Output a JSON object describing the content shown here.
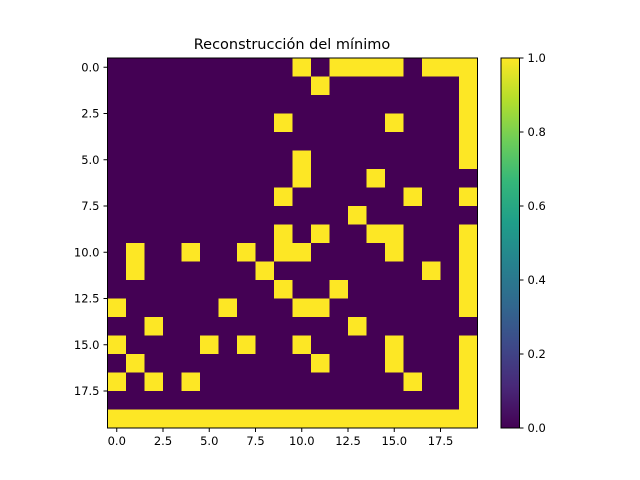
{
  "chart_data": {
    "type": "heatmap",
    "title": "Reconstrucción del mínimo",
    "rows": 20,
    "cols": 20,
    "colormap": "viridis",
    "colors": {
      "low": "#440154",
      "high": "#fde725"
    },
    "x_ticks": [
      "0.0",
      "2.5",
      "5.0",
      "7.5",
      "10.0",
      "12.5",
      "15.0",
      "17.5"
    ],
    "x_tick_values": [
      0,
      2.5,
      5,
      7.5,
      10,
      12.5,
      15,
      17.5
    ],
    "y_ticks": [
      "0.0",
      "2.5",
      "5.0",
      "7.5",
      "10.0",
      "12.5",
      "15.0",
      "17.5"
    ],
    "y_tick_values": [
      0,
      2.5,
      5,
      7.5,
      10,
      12.5,
      15,
      17.5
    ],
    "colorbar_ticks": [
      "0.0",
      "0.2",
      "0.4",
      "0.6",
      "0.8",
      "1.0"
    ],
    "colorbar_tick_values": [
      0,
      0.2,
      0.4,
      0.6,
      0.8,
      1.0
    ],
    "vmin": 0,
    "vmax": 1,
    "grid": false,
    "values": [
      [
        0,
        0,
        0,
        0,
        0,
        0,
        0,
        0,
        0,
        0,
        1,
        0,
        1,
        1,
        1,
        1,
        0,
        1,
        1,
        1
      ],
      [
        0,
        0,
        0,
        0,
        0,
        0,
        0,
        0,
        0,
        0,
        0,
        1,
        0,
        0,
        0,
        0,
        0,
        0,
        0,
        1
      ],
      [
        0,
        0,
        0,
        0,
        0,
        0,
        0,
        0,
        0,
        0,
        0,
        0,
        0,
        0,
        0,
        0,
        0,
        0,
        0,
        1
      ],
      [
        0,
        0,
        0,
        0,
        0,
        0,
        0,
        0,
        0,
        1,
        0,
        0,
        0,
        0,
        0,
        1,
        0,
        0,
        0,
        1
      ],
      [
        0,
        0,
        0,
        0,
        0,
        0,
        0,
        0,
        0,
        0,
        0,
        0,
        0,
        0,
        0,
        0,
        0,
        0,
        0,
        1
      ],
      [
        0,
        0,
        0,
        0,
        0,
        0,
        0,
        0,
        0,
        0,
        1,
        0,
        0,
        0,
        0,
        0,
        0,
        0,
        0,
        1
      ],
      [
        0,
        0,
        0,
        0,
        0,
        0,
        0,
        0,
        0,
        0,
        1,
        0,
        0,
        0,
        1,
        0,
        0,
        0,
        0,
        0
      ],
      [
        0,
        0,
        0,
        0,
        0,
        0,
        0,
        0,
        0,
        1,
        0,
        0,
        0,
        0,
        0,
        0,
        1,
        0,
        0,
        1
      ],
      [
        0,
        0,
        0,
        0,
        0,
        0,
        0,
        0,
        0,
        0,
        0,
        0,
        0,
        1,
        0,
        0,
        0,
        0,
        0,
        0
      ],
      [
        0,
        0,
        0,
        0,
        0,
        0,
        0,
        0,
        0,
        1,
        0,
        1,
        0,
        0,
        1,
        1,
        0,
        0,
        0,
        1
      ],
      [
        0,
        1,
        0,
        0,
        1,
        0,
        0,
        1,
        0,
        1,
        1,
        0,
        0,
        0,
        0,
        1,
        0,
        0,
        0,
        1
      ],
      [
        0,
        1,
        0,
        0,
        0,
        0,
        0,
        0,
        1,
        0,
        0,
        0,
        0,
        0,
        0,
        0,
        0,
        1,
        0,
        1
      ],
      [
        0,
        0,
        0,
        0,
        0,
        0,
        0,
        0,
        0,
        1,
        0,
        0,
        1,
        0,
        0,
        0,
        0,
        0,
        0,
        1
      ],
      [
        1,
        0,
        0,
        0,
        0,
        0,
        1,
        0,
        0,
        0,
        1,
        1,
        0,
        0,
        0,
        0,
        0,
        0,
        0,
        1
      ],
      [
        0,
        0,
        1,
        0,
        0,
        0,
        0,
        0,
        0,
        0,
        0,
        0,
        0,
        1,
        0,
        0,
        0,
        0,
        0,
        0
      ],
      [
        1,
        0,
        0,
        0,
        0,
        1,
        0,
        1,
        0,
        0,
        1,
        0,
        0,
        0,
        0,
        1,
        0,
        0,
        0,
        1
      ],
      [
        0,
        1,
        0,
        0,
        0,
        0,
        0,
        0,
        0,
        0,
        0,
        1,
        0,
        0,
        0,
        1,
        0,
        0,
        0,
        1
      ],
      [
        1,
        0,
        1,
        0,
        1,
        0,
        0,
        0,
        0,
        0,
        0,
        0,
        0,
        0,
        0,
        0,
        1,
        0,
        0,
        1
      ],
      [
        0,
        0,
        0,
        0,
        0,
        0,
        0,
        0,
        0,
        0,
        0,
        0,
        0,
        0,
        0,
        0,
        0,
        0,
        0,
        1
      ],
      [
        1,
        1,
        1,
        1,
        1,
        1,
        1,
        1,
        1,
        1,
        1,
        1,
        1,
        1,
        1,
        1,
        1,
        1,
        1,
        1
      ]
    ]
  }
}
